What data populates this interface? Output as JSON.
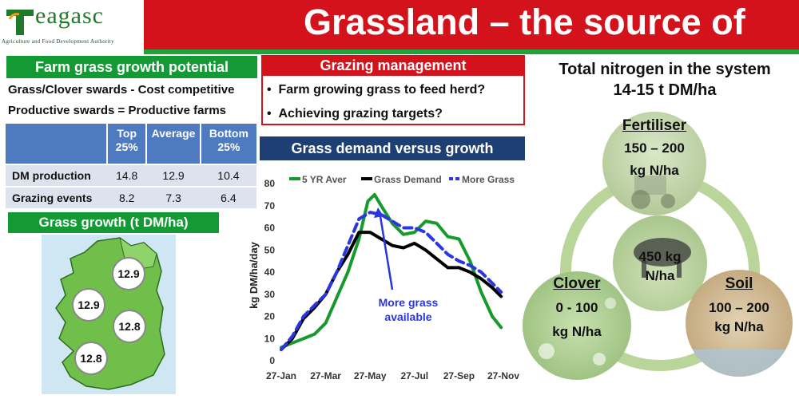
{
  "header": {
    "logo_text": "Teagasc",
    "logo_subtitle": "Agriculture and Food Development Authority",
    "title": "Grassland – the source of"
  },
  "farm": {
    "heading": "Farm grass growth potential",
    "statement1": "Grass/Clover swards  - Cost competitive",
    "statement2": "Productive swards = Productive farms",
    "table": {
      "headers": [
        "Top 25%",
        "Average",
        "Bottom 25%"
      ],
      "rows": [
        {
          "label": "DM production",
          "values": [
            "14.8",
            "12.9",
            "10.4"
          ]
        },
        {
          "label": "Grazing events",
          "values": [
            "8.2",
            "7.3",
            "6.4"
          ]
        }
      ]
    },
    "growth_heading": "Grass growth (t DM/ha)",
    "map_values": [
      "12.9",
      "12.9",
      "12.8",
      "12.8"
    ]
  },
  "grazing": {
    "heading": "Grazing management",
    "bullets": [
      "Farm growing grass to feed herd?",
      "Achieving grazing targets?"
    ]
  },
  "demand_heading": "Grass demand versus growth",
  "chart_data": {
    "type": "line",
    "title": "Grass demand versus growth",
    "xlabel": "",
    "ylabel": "kg DM/ha/day",
    "ylim": [
      0,
      80
    ],
    "yticks": [
      0,
      10,
      20,
      30,
      40,
      50,
      60,
      70,
      80
    ],
    "x": [
      "27-Jan",
      "27-Mar",
      "27-May",
      "27-Jul",
      "27-Sep",
      "27-Nov"
    ],
    "x_index": [
      0,
      2,
      4,
      6,
      8,
      10
    ],
    "series": [
      {
        "name": "5 YR Aver",
        "color": "#169a2c",
        "dash": false,
        "points": [
          [
            0,
            6
          ],
          [
            0.5,
            8
          ],
          [
            1,
            10
          ],
          [
            1.5,
            12
          ],
          [
            2,
            17
          ],
          [
            3,
            40
          ],
          [
            3.5,
            55
          ],
          [
            3.9,
            72
          ],
          [
            4.2,
            75
          ],
          [
            4.5,
            70
          ],
          [
            5,
            62
          ],
          [
            5.5,
            57
          ],
          [
            6,
            58
          ],
          [
            6.5,
            63
          ],
          [
            7,
            62
          ],
          [
            7.5,
            56
          ],
          [
            8,
            55
          ],
          [
            8.5,
            45
          ],
          [
            9,
            31
          ],
          [
            9.5,
            20
          ],
          [
            9.9,
            15
          ]
        ]
      },
      {
        "name": "Grass Demand",
        "color": "#000000",
        "dash": false,
        "points": [
          [
            0,
            5
          ],
          [
            0.5,
            10
          ],
          [
            1,
            19
          ],
          [
            1.5,
            24
          ],
          [
            2,
            30
          ],
          [
            2.5,
            40
          ],
          [
            3,
            48
          ],
          [
            3.5,
            58
          ],
          [
            4,
            58
          ],
          [
            4.5,
            55
          ],
          [
            5,
            52
          ],
          [
            5.5,
            51
          ],
          [
            6,
            53
          ],
          [
            6.5,
            50
          ],
          [
            7,
            46
          ],
          [
            7.5,
            42
          ],
          [
            8,
            42
          ],
          [
            8.5,
            40
          ],
          [
            9,
            37
          ],
          [
            9.5,
            33
          ],
          [
            9.9,
            29
          ]
        ]
      },
      {
        "name": "More Grass",
        "color": "#2a36e0",
        "dash": true,
        "points": [
          [
            0,
            5
          ],
          [
            0.5,
            11
          ],
          [
            1,
            20
          ],
          [
            1.5,
            25
          ],
          [
            2,
            30
          ],
          [
            2.5,
            40
          ],
          [
            3,
            52
          ],
          [
            3.5,
            64
          ],
          [
            4,
            67
          ],
          [
            4.5,
            66
          ],
          [
            5,
            63
          ],
          [
            5.5,
            60
          ],
          [
            6,
            60
          ],
          [
            6.5,
            58
          ],
          [
            7,
            53
          ],
          [
            7.5,
            48
          ],
          [
            8,
            45
          ],
          [
            8.5,
            43
          ],
          [
            9,
            40
          ],
          [
            9.5,
            35
          ],
          [
            9.9,
            31
          ]
        ]
      }
    ],
    "annotation": {
      "text_line1": "More grass",
      "text_line2": "available",
      "color": "#2a36e0"
    }
  },
  "nitrogen": {
    "title_line1": "Total nitrogen in the system",
    "title_line2": "14-15 t DM/ha",
    "fertiliser": {
      "label": "Fertiliser",
      "value": "150 – 200",
      "unit": "kg N/ha"
    },
    "cow": {
      "value": "450 kg",
      "unit": "N/ha"
    },
    "clover": {
      "label": "Clover",
      "value": "0 - 100",
      "unit": "kg N/ha"
    },
    "soil": {
      "label": "Soil",
      "value": "100 – 200",
      "unit": "kg N/ha"
    }
  }
}
